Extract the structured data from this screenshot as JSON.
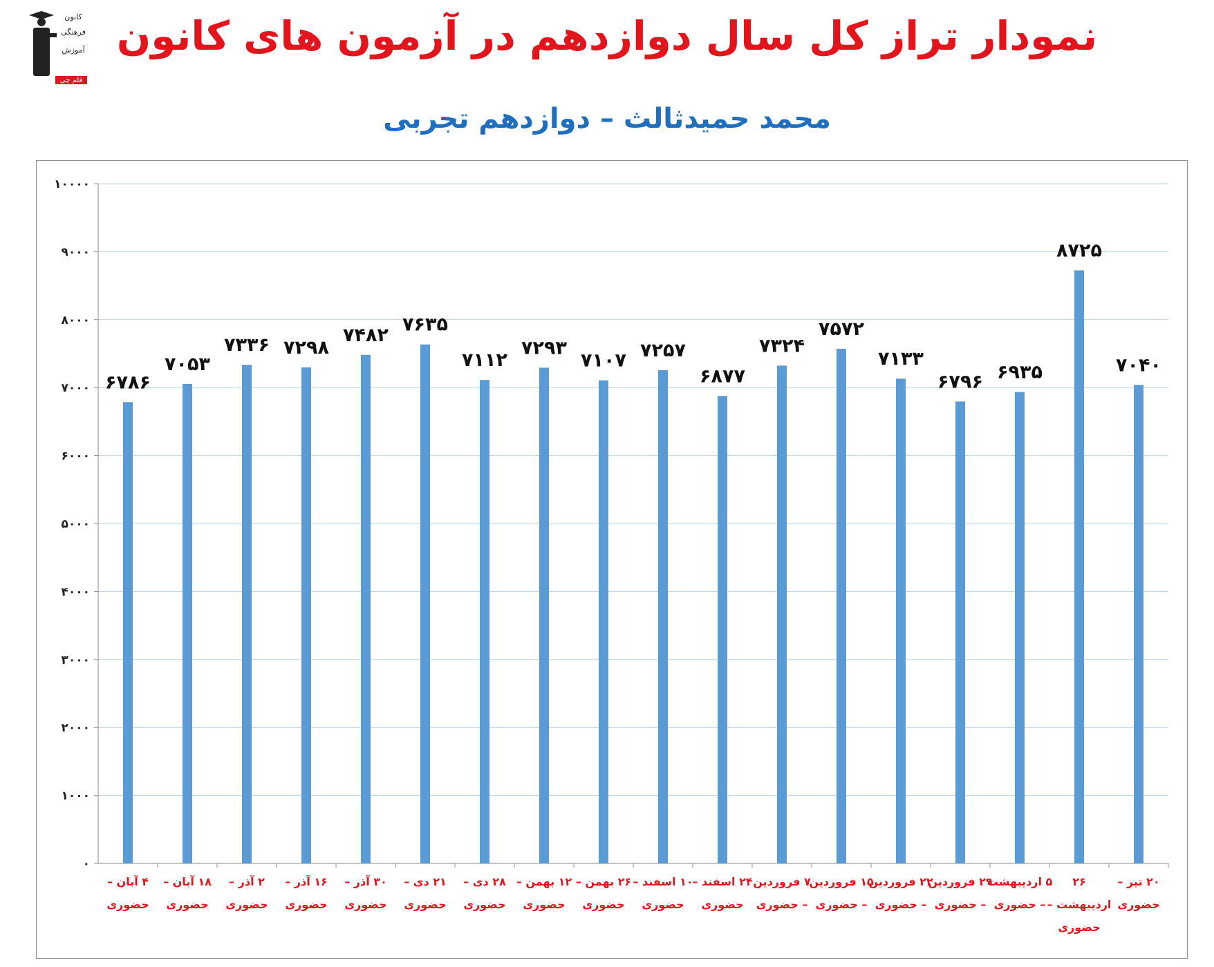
{
  "header": {
    "title": "نمودار تراز کل سال دوازدهم در آزمون های کانون",
    "subtitle": "محمد حمیدثالث – دوازدهم تجربی"
  },
  "logo": {
    "text_lines": [
      "کانون",
      "فرهنگی",
      "آموزش",
      "قلم چی"
    ]
  },
  "colors": {
    "bar": "#5b9bd5",
    "title": "#e3141b",
    "subtitle": "#1f6fc0",
    "category_label": "#e3141b",
    "gridline": "#b4d0ec"
  },
  "chart_data": {
    "type": "bar",
    "ylim": [
      0,
      10000
    ],
    "yticks": [
      "۰",
      "۱۰۰۰",
      "۲۰۰۰",
      "۳۰۰۰",
      "۴۰۰۰",
      "۵۰۰۰",
      "۶۰۰۰",
      "۷۰۰۰",
      "۸۰۰۰",
      "۹۰۰۰",
      "۱۰۰۰۰"
    ],
    "grid": true,
    "categories": [
      [
        "۴ آبان –",
        "حضوری"
      ],
      [
        "۱۸ آبان –",
        "حضوری"
      ],
      [
        "۲ آذر –",
        "حضوری"
      ],
      [
        "۱۶ آذر –",
        "حضوری"
      ],
      [
        "۳۰ آذر –",
        "حضوری"
      ],
      [
        "۲۱ دی –",
        "حضوری"
      ],
      [
        "۲۸ دی –",
        "حضوری"
      ],
      [
        "۱۲ بهمن –",
        "حضوری"
      ],
      [
        "۲۶ بهمن –",
        "حضوری"
      ],
      [
        "۱۰ اسفند –",
        "حضوری"
      ],
      [
        "۲۴ اسفند –",
        "حضوری"
      ],
      [
        "۷ فروردین",
        "– حضوری"
      ],
      [
        "۱۵ فروردین",
        "– حضوری"
      ],
      [
        "۲۲ فروردین",
        "– حضوری"
      ],
      [
        "۲۹ فروردین",
        "– حضوری"
      ],
      [
        "۵ اردیبهشت",
        "– حضوری"
      ],
      [
        "۲۶",
        "اردیبهشت –",
        "حضوری"
      ],
      [
        "۲۰ تیر –",
        "حضوری"
      ]
    ],
    "values": [
      6786,
      7053,
      7336,
      7298,
      7482,
      7635,
      7112,
      7293,
      7107,
      7257,
      6877,
      7324,
      7572,
      7133,
      6796,
      6935,
      8725,
      7040
    ],
    "value_labels": [
      "۶۷۸۶",
      "۷۰۵۳",
      "۷۳۳۶",
      "۷۲۹۸",
      "۷۴۸۲",
      "۷۶۳۵",
      "۷۱۱۲",
      "۷۲۹۳",
      "۷۱۰۷",
      "۷۲۵۷",
      "۶۸۷۷",
      "۷۳۲۴",
      "۷۵۷۲",
      "۷۱۳۳",
      "۶۷۹۶",
      "۶۹۳۵",
      "۸۷۲۵",
      "۷۰۴۰"
    ]
  }
}
